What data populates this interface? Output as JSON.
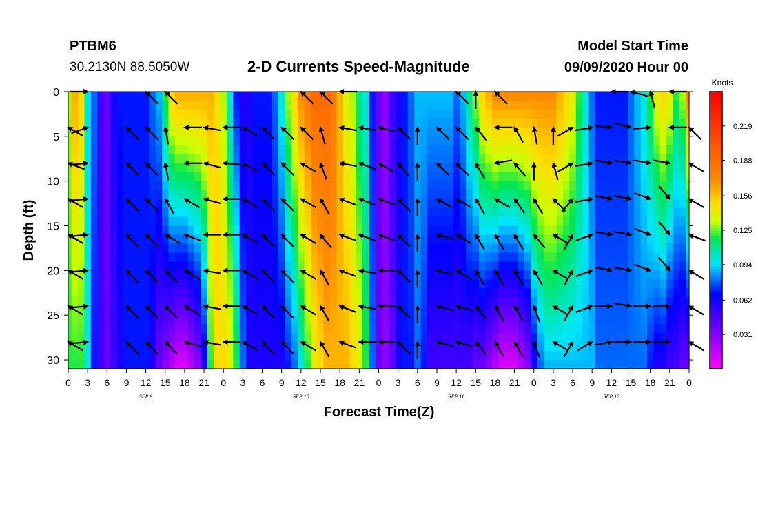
{
  "header": {
    "station": "PTBM6",
    "coords": "30.2130N 88.5050W",
    "title": "2-D Currents Speed-Magnitude",
    "model_start_label": "Model Start Time",
    "model_start_value": "09/09/2020 Hour 00"
  },
  "chart_data": {
    "type": "heatmap",
    "title": "2-D Currents Speed-Magnitude",
    "xlabel": "Forecast Time(Z)",
    "ylabel": "Depth (ft)",
    "x_hours_range": [
      0,
      96
    ],
    "x_tick_labels": [
      "0",
      "3",
      "6",
      "9",
      "12",
      "15",
      "18",
      "21",
      "0",
      "3",
      "6",
      "9",
      "12",
      "15",
      "18",
      "21",
      "0",
      "3",
      "6",
      "9",
      "12",
      "15",
      "18",
      "21",
      "0",
      "3",
      "6",
      "9",
      "12",
      "15",
      "18",
      "21",
      "0"
    ],
    "day_labels": [
      {
        "hour": 12,
        "label": "SEP 9"
      },
      {
        "hour": 36,
        "label": "SEP 10"
      },
      {
        "hour": 60,
        "label": "SEP 11"
      },
      {
        "hour": 84,
        "label": "SEP 12"
      }
    ],
    "y_range": [
      0,
      31
    ],
    "y_ticks": [
      0,
      5,
      10,
      15,
      20,
      25,
      30
    ],
    "colorbar": {
      "unit": "Knots",
      "range": [
        0,
        0.25
      ],
      "ticks": [
        0.031,
        0.062,
        0.094,
        0.125,
        0.156,
        0.188,
        0.219
      ],
      "tick_labels": [
        "0.031",
        "0.062",
        "0.094",
        "0.125",
        "0.156",
        "0.188",
        "0.219"
      ]
    },
    "speed_by_hour": {
      "hours": [
        0,
        1,
        2,
        3,
        4,
        5,
        6,
        7,
        8,
        9,
        10,
        11,
        12,
        13,
        14,
        15,
        16,
        17,
        18,
        19,
        20,
        21,
        22,
        23,
        24,
        25,
        26,
        27,
        28,
        29,
        30,
        31,
        32,
        33,
        34,
        35,
        36,
        37,
        38,
        39,
        40,
        41,
        42,
        43,
        44,
        45,
        46,
        47,
        48,
        49,
        50,
        51,
        52,
        53,
        54,
        55,
        56,
        57,
        58,
        59,
        60,
        61,
        62,
        63,
        64,
        65,
        66,
        67,
        68,
        69,
        70,
        71,
        72,
        73,
        74,
        75,
        76,
        77,
        78,
        79,
        80,
        81,
        82,
        83,
        84,
        85,
        86,
        87,
        88,
        89,
        90,
        91,
        92,
        93,
        94,
        95,
        96
      ],
      "surface": [
        0.13,
        0.16,
        0.15,
        0.1,
        0.08,
        0.05,
        0.04,
        0.06,
        0.07,
        0.07,
        0.07,
        0.07,
        0.07,
        0.08,
        0.09,
        0.12,
        0.15,
        0.16,
        0.16,
        0.16,
        0.16,
        0.16,
        0.16,
        0.15,
        0.13,
        0.1,
        0.07,
        0.06,
        0.06,
        0.07,
        0.07,
        0.07,
        0.08,
        0.1,
        0.13,
        0.15,
        0.17,
        0.18,
        0.19,
        0.19,
        0.19,
        0.18,
        0.16,
        0.14,
        0.13,
        0.11,
        0.1,
        0.07,
        0.04,
        0.03,
        0.05,
        0.06,
        0.07,
        0.08,
        0.09,
        0.09,
        0.09,
        0.09,
        0.09,
        0.09,
        0.08,
        0.09,
        0.11,
        0.13,
        0.15,
        0.16,
        0.17,
        0.17,
        0.17,
        0.17,
        0.17,
        0.17,
        0.17,
        0.17,
        0.17,
        0.17,
        0.16,
        0.15,
        0.14,
        0.12,
        0.1,
        0.08,
        0.07,
        0.07,
        0.07,
        0.07,
        0.07,
        0.08,
        0.09,
        0.1,
        0.12,
        0.14,
        0.15,
        0.14,
        0.12,
        0.13,
        0.17
      ],
      "deep": [
        0.12,
        0.12,
        0.12,
        0.1,
        0.07,
        0.05,
        0.04,
        0.05,
        0.06,
        0.07,
        0.07,
        0.07,
        0.07,
        0.06,
        0.04,
        0.03,
        0.02,
        0.01,
        0.01,
        0.02,
        0.03,
        0.06,
        0.12,
        0.15,
        0.15,
        0.14,
        0.12,
        0.08,
        0.06,
        0.06,
        0.06,
        0.06,
        0.06,
        0.06,
        0.07,
        0.08,
        0.1,
        0.12,
        0.14,
        0.15,
        0.16,
        0.16,
        0.16,
        0.16,
        0.15,
        0.14,
        0.12,
        0.08,
        0.04,
        0.03,
        0.04,
        0.06,
        0.07,
        0.07,
        0.08,
        0.07,
        0.05,
        0.05,
        0.05,
        0.05,
        0.05,
        0.05,
        0.05,
        0.04,
        0.04,
        0.03,
        0.02,
        0.01,
        0.01,
        0.01,
        0.02,
        0.03,
        0.06,
        0.08,
        0.09,
        0.09,
        0.09,
        0.09,
        0.09,
        0.09,
        0.09,
        0.09,
        0.08,
        0.08,
        0.08,
        0.08,
        0.08,
        0.08,
        0.08,
        0.08,
        0.07,
        0.06,
        0.06,
        0.05,
        0.05,
        0.04,
        0.04
      ]
    },
    "vectors": {
      "times": [
        0,
        3,
        6,
        9,
        12,
        15,
        18,
        21,
        24,
        27,
        30,
        33,
        36,
        39,
        42,
        45,
        48,
        51,
        54,
        57,
        60,
        63,
        66,
        69,
        72,
        75,
        78,
        81,
        84,
        87,
        90,
        93,
        96
      ],
      "depths_ft": [
        0,
        4,
        8,
        12,
        16,
        20,
        24,
        28
      ],
      "direction_deg": [
        [
          null,
          90,
          null,
          null,
          315,
          315,
          null,
          null,
          null,
          null,
          null,
          null,
          315,
          315,
          270,
          null,
          null,
          null,
          null,
          null,
          315,
          360,
          315,
          null,
          null,
          null,
          null,
          null,
          270,
          285,
          345,
          270,
          null
        ],
        [
          300,
          70,
          null,
          315,
          315,
          350,
          270,
          280,
          270,
          300,
          315,
          315,
          315,
          345,
          280,
          280,
          285,
          315,
          360,
          315,
          315,
          320,
          270,
          330,
          350,
          360,
          60,
          80,
          95,
          105,
          85,
          270,
          315
        ],
        [
          290,
          85,
          null,
          315,
          315,
          350,
          270,
          285,
          275,
          300,
          315,
          315,
          300,
          340,
          280,
          290,
          300,
          320,
          360,
          315,
          315,
          330,
          260,
          320,
          360,
          345,
          60,
          80,
          100,
          100,
          100,
          100,
          300
        ],
        [
          300,
          85,
          null,
          315,
          315,
          330,
          300,
          285,
          270,
          300,
          315,
          315,
          300,
          330,
          290,
          290,
          290,
          315,
          360,
          300,
          300,
          330,
          300,
          325,
          330,
          315,
          40,
          80,
          100,
          100,
          110,
          140,
          300
        ],
        [
          300,
          85,
          null,
          315,
          315,
          300,
          290,
          270,
          270,
          300,
          315,
          315,
          300,
          320,
          290,
          290,
          290,
          315,
          360,
          285,
          300,
          330,
          330,
          330,
          320,
          300,
          30,
          70,
          100,
          100,
          110,
          140,
          290
        ],
        [
          300,
          85,
          null,
          315,
          315,
          315,
          300,
          280,
          270,
          300,
          315,
          315,
          300,
          330,
          290,
          280,
          270,
          315,
          360,
          285,
          300,
          330,
          330,
          330,
          330,
          300,
          30,
          70,
          100,
          100,
          110,
          140,
          300
        ],
        [
          300,
          85,
          null,
          315,
          315,
          315,
          300,
          280,
          270,
          300,
          315,
          315,
          300,
          330,
          290,
          280,
          270,
          315,
          360,
          285,
          285,
          320,
          330,
          330,
          340,
          300,
          30,
          70,
          90,
          100,
          90,
          90,
          300
        ],
        [
          300,
          85,
          null,
          315,
          315,
          315,
          285,
          280,
          270,
          300,
          315,
          315,
          300,
          330,
          290,
          270,
          270,
          315,
          360,
          285,
          285,
          320,
          330,
          330,
          340,
          300,
          30,
          60,
          80,
          90,
          90,
          90,
          300
        ]
      ]
    }
  }
}
